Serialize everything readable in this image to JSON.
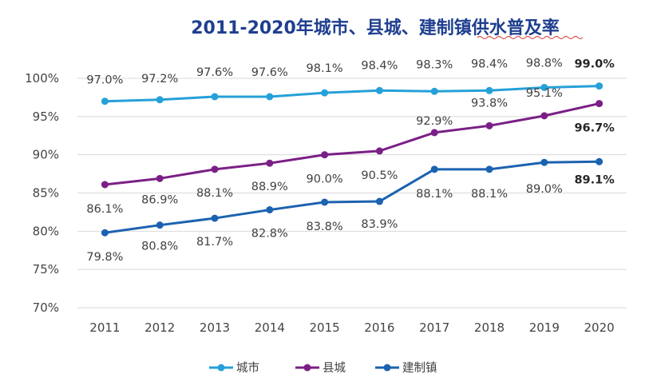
{
  "chart_data": {
    "type": "line",
    "title": "2011-2020年城市、县城、建制镇供水普及率",
    "xlabel": "",
    "ylabel": "",
    "categories": [
      "2011",
      "2012",
      "2013",
      "2014",
      "2015",
      "2016",
      "2017",
      "2018",
      "2019",
      "2020"
    ],
    "ylim": [
      70,
      100
    ],
    "yticks": [
      70,
      75,
      80,
      85,
      90,
      95,
      100
    ],
    "ytick_labels": [
      "70%",
      "75%",
      "80%",
      "85%",
      "90%",
      "95%",
      "100%"
    ],
    "grid": "horizontal",
    "legend": "bottom",
    "series": [
      {
        "name": "城市",
        "color": "#25a0d8",
        "values": [
          97.0,
          97.2,
          97.6,
          97.6,
          98.1,
          98.4,
          98.3,
          98.4,
          98.8,
          99.0
        ],
        "labels": [
          "97.0%",
          "97.2%",
          "97.6%",
          "97.6%",
          "98.1%",
          "98.4%",
          "98.3%",
          "98.4%",
          "98.8%",
          "99.0%"
        ]
      },
      {
        "name": "县城",
        "color": "#7b1f86",
        "values": [
          86.1,
          86.9,
          88.1,
          88.9,
          90.0,
          90.5,
          92.9,
          93.8,
          95.1,
          96.7
        ],
        "labels": [
          "86.1%",
          "86.9%",
          "88.1%",
          "88.9%",
          "90.0%",
          "90.5%",
          "92.9%",
          "93.8%",
          "95.1%",
          "96.7%"
        ]
      },
      {
        "name": "建制镇",
        "color": "#1b62b0",
        "values": [
          79.8,
          80.8,
          81.7,
          82.8,
          83.8,
          83.9,
          88.1,
          88.1,
          89.0,
          89.1
        ],
        "labels": [
          "79.8%",
          "80.8%",
          "81.7%",
          "82.8%",
          "83.8%",
          "83.9%",
          "88.1%",
          "88.1%",
          "89.0%",
          "89.1%"
        ]
      }
    ]
  }
}
